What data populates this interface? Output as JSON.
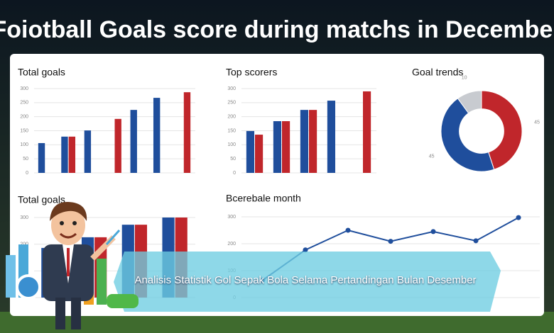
{
  "header": {
    "title": "Foiotball  Goals score during matchs in December"
  },
  "banner": {
    "text": "Analisis Statistik Gol Sepak Bola Selama Pertandingan Bulan Desember"
  },
  "chart_data": [
    {
      "type": "bar",
      "title": "Total goals",
      "categories": [
        null,
        null,
        null,
        null,
        null,
        null,
        null
      ],
      "series": [
        {
          "color": "#1f4e9c",
          "values": [
            106,
            129,
            151,
            null,
            224,
            267,
            null
          ]
        },
        {
          "color": "#c0262b",
          "values": [
            null,
            129,
            null,
            192,
            null,
            null,
            287
          ]
        }
      ],
      "ylim": [
        0,
        300
      ],
      "yticks": [
        0,
        50,
        100,
        150,
        200,
        250,
        300
      ],
      "grid": true
    },
    {
      "type": "bar",
      "title": "Top scorers",
      "categories": [
        null,
        null,
        null,
        null,
        null
      ],
      "series": [
        {
          "color": "#1f4e9c",
          "values": [
            149,
            184,
            224,
            257,
            null
          ]
        },
        {
          "color": "#c0262b",
          "values": [
            136,
            184,
            224,
            null,
            290
          ]
        }
      ],
      "ylim": [
        0,
        300
      ],
      "yticks": [
        0,
        50,
        100,
        150,
        200,
        250,
        300
      ],
      "grid": true
    },
    {
      "type": "pie",
      "title": "Goal trends",
      "donut": true,
      "categories": [
        null,
        null,
        null
      ],
      "values": [
        45,
        45,
        10
      ],
      "colors": [
        "#c0262b",
        "#1f4e9c",
        "#c8cbd0"
      ]
    },
    {
      "type": "bar",
      "title": "Total goals",
      "categories": [
        null,
        null,
        null,
        null
      ],
      "series": [
        {
          "color": "#1f4e9c",
          "values": [
            186,
            226,
            273,
            300
          ]
        },
        {
          "color": "#c0262b",
          "values": [
            186,
            226,
            273,
            300
          ]
        }
      ],
      "ylim": [
        0,
        300
      ],
      "yticks": [
        0,
        100,
        200,
        300
      ],
      "grid": true
    },
    {
      "type": "line",
      "title": "Bcerebale month",
      "categories": [
        null,
        null,
        null,
        null,
        null,
        null,
        null
      ],
      "series": [
        {
          "color": "#1f4e9c",
          "values": [
            65,
            177,
            250,
            209,
            245,
            211,
            297
          ]
        }
      ],
      "ylim": [
        0,
        300
      ],
      "yticks": [
        0,
        100,
        200,
        300
      ],
      "grid": true
    }
  ]
}
